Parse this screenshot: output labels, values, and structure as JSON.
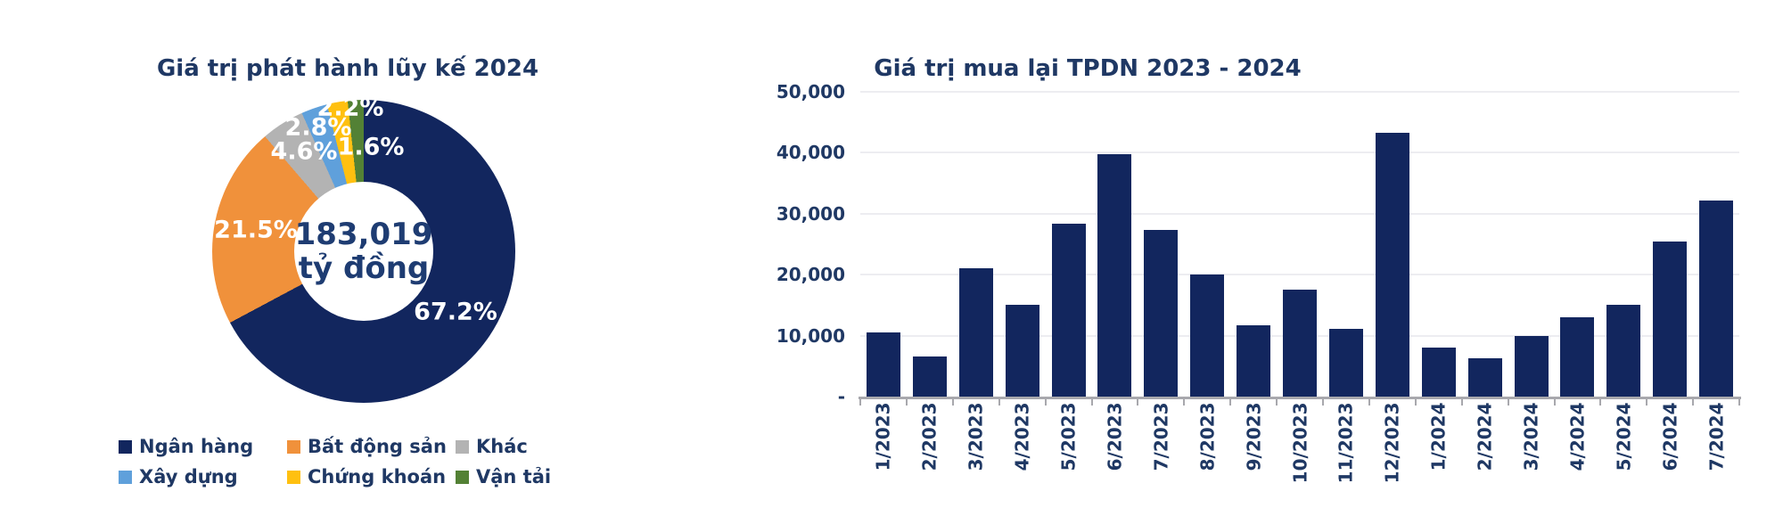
{
  "chart_data": [
    {
      "type": "pie",
      "subtype": "donut",
      "title": "Giá trị phát hành lũy kế 2024",
      "center_value": "183,019",
      "center_unit": "tỷ đồng",
      "segments": [
        {
          "label": "Ngân hàng",
          "value": 67.2,
          "display": "67.2%",
          "color": "#12265E"
        },
        {
          "label": "Bất động sản",
          "value": 21.5,
          "display": "21.5%",
          "color": "#F0913B"
        },
        {
          "label": "Khác",
          "value": 4.6,
          "display": "4.6%",
          "color": "#B3B3B3"
        },
        {
          "label": "Xây dựng",
          "value": 2.8,
          "display": "2.8%",
          "color": "#5FA0DB"
        },
        {
          "label": "Chứng khoán",
          "value": 2.2,
          "display": "2.2%",
          "color": "#FFC010"
        },
        {
          "label": "Vận tải",
          "value": 1.6,
          "display": "1.6%",
          "color": "#538135"
        }
      ],
      "legend_rows": [
        [
          "Ngân hàng",
          "Bất động sản",
          "Khác"
        ],
        [
          "Xây dựng",
          "Chứng khoán",
          "Vận tải"
        ]
      ],
      "legend_position": "bottom"
    },
    {
      "type": "bar",
      "title": "Giá trị mua lại TPDN 2023 - 2024",
      "categories": [
        "1/2023",
        "2/2023",
        "3/2023",
        "4/2023",
        "5/2023",
        "6/2023",
        "7/2023",
        "8/2023",
        "9/2023",
        "10/2023",
        "11/2023",
        "12/2023",
        "1/2024",
        "2/2024",
        "3/2024",
        "4/2024",
        "5/2024",
        "6/2024",
        "7/2024"
      ],
      "values": [
        10500,
        6600,
        21000,
        15000,
        28400,
        39800,
        27400,
        20000,
        11700,
        17600,
        11100,
        43300,
        8100,
        6300,
        10000,
        13000,
        15000,
        25500,
        32200
      ],
      "xlabel": "",
      "ylabel": "",
      "ylim": [
        0,
        50000
      ],
      "y_ticks": [
        {
          "value": 0,
          "label": "-"
        },
        {
          "value": 10000,
          "label": "10,000"
        },
        {
          "value": 20000,
          "label": "20,000"
        },
        {
          "value": 30000,
          "label": "30,000"
        },
        {
          "value": 40000,
          "label": "40,000"
        },
        {
          "value": 50000,
          "label": "50,000"
        }
      ],
      "grid": true,
      "bar_color": "#12265E",
      "x_label_rotation": -90,
      "legend_position": "none"
    }
  ],
  "colors": {
    "navy": "#12265E",
    "text_blue": "#1F3864",
    "gridline": "#EDEDF1",
    "axis": "#A8A8AD"
  }
}
